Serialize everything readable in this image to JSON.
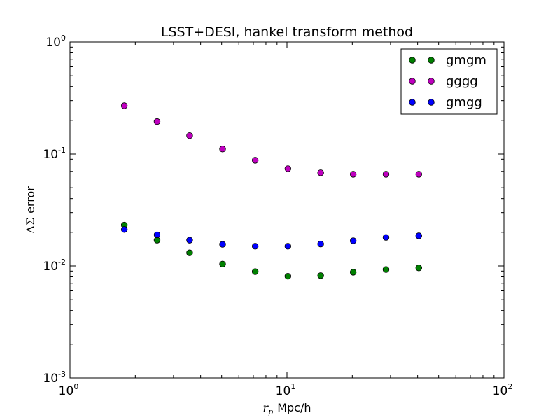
{
  "chart_data": {
    "type": "scatter",
    "title": "LSST+DESI, hankel transform method",
    "xlabel": {
      "var": "r",
      "sub": "p",
      "unit": "Mpc/h"
    },
    "ylabel": {
      "prefix": "ΔΣ",
      "suffix": "error"
    },
    "xscale": "log",
    "yscale": "log",
    "xlim": [
      1,
      100
    ],
    "ylim": [
      0.001,
      1
    ],
    "x_ticks": [
      {
        "base": "10",
        "exp": "0"
      },
      {
        "base": "10",
        "exp": "1"
      },
      {
        "base": "10",
        "exp": "2"
      }
    ],
    "y_ticks": [
      {
        "base": "10",
        "exp": "-3"
      },
      {
        "base": "10",
        "exp": "-2"
      },
      {
        "base": "10",
        "exp": "-1"
      },
      {
        "base": "10",
        "exp": "0"
      }
    ],
    "legend_position": "top-right",
    "x": [
      1.78,
      2.52,
      3.56,
      5.05,
      7.14,
      10.1,
      14.3,
      20.2,
      28.6,
      40.5
    ],
    "series": [
      {
        "name": "gmgm",
        "color": "#008000",
        "values": [
          0.0232,
          0.017,
          0.0131,
          0.0104,
          0.0089,
          0.0081,
          0.0082,
          0.0088,
          0.0093,
          0.0096
        ]
      },
      {
        "name": "gggg",
        "color": "#bf00bf",
        "values": [
          0.27,
          0.195,
          0.146,
          0.111,
          0.088,
          0.074,
          0.068,
          0.066,
          0.066,
          0.066
        ]
      },
      {
        "name": "gmgg",
        "color": "#0000ff",
        "values": [
          0.0212,
          0.019,
          0.017,
          0.0156,
          0.015,
          0.015,
          0.0157,
          0.0168,
          0.018,
          0.0186
        ]
      }
    ]
  }
}
